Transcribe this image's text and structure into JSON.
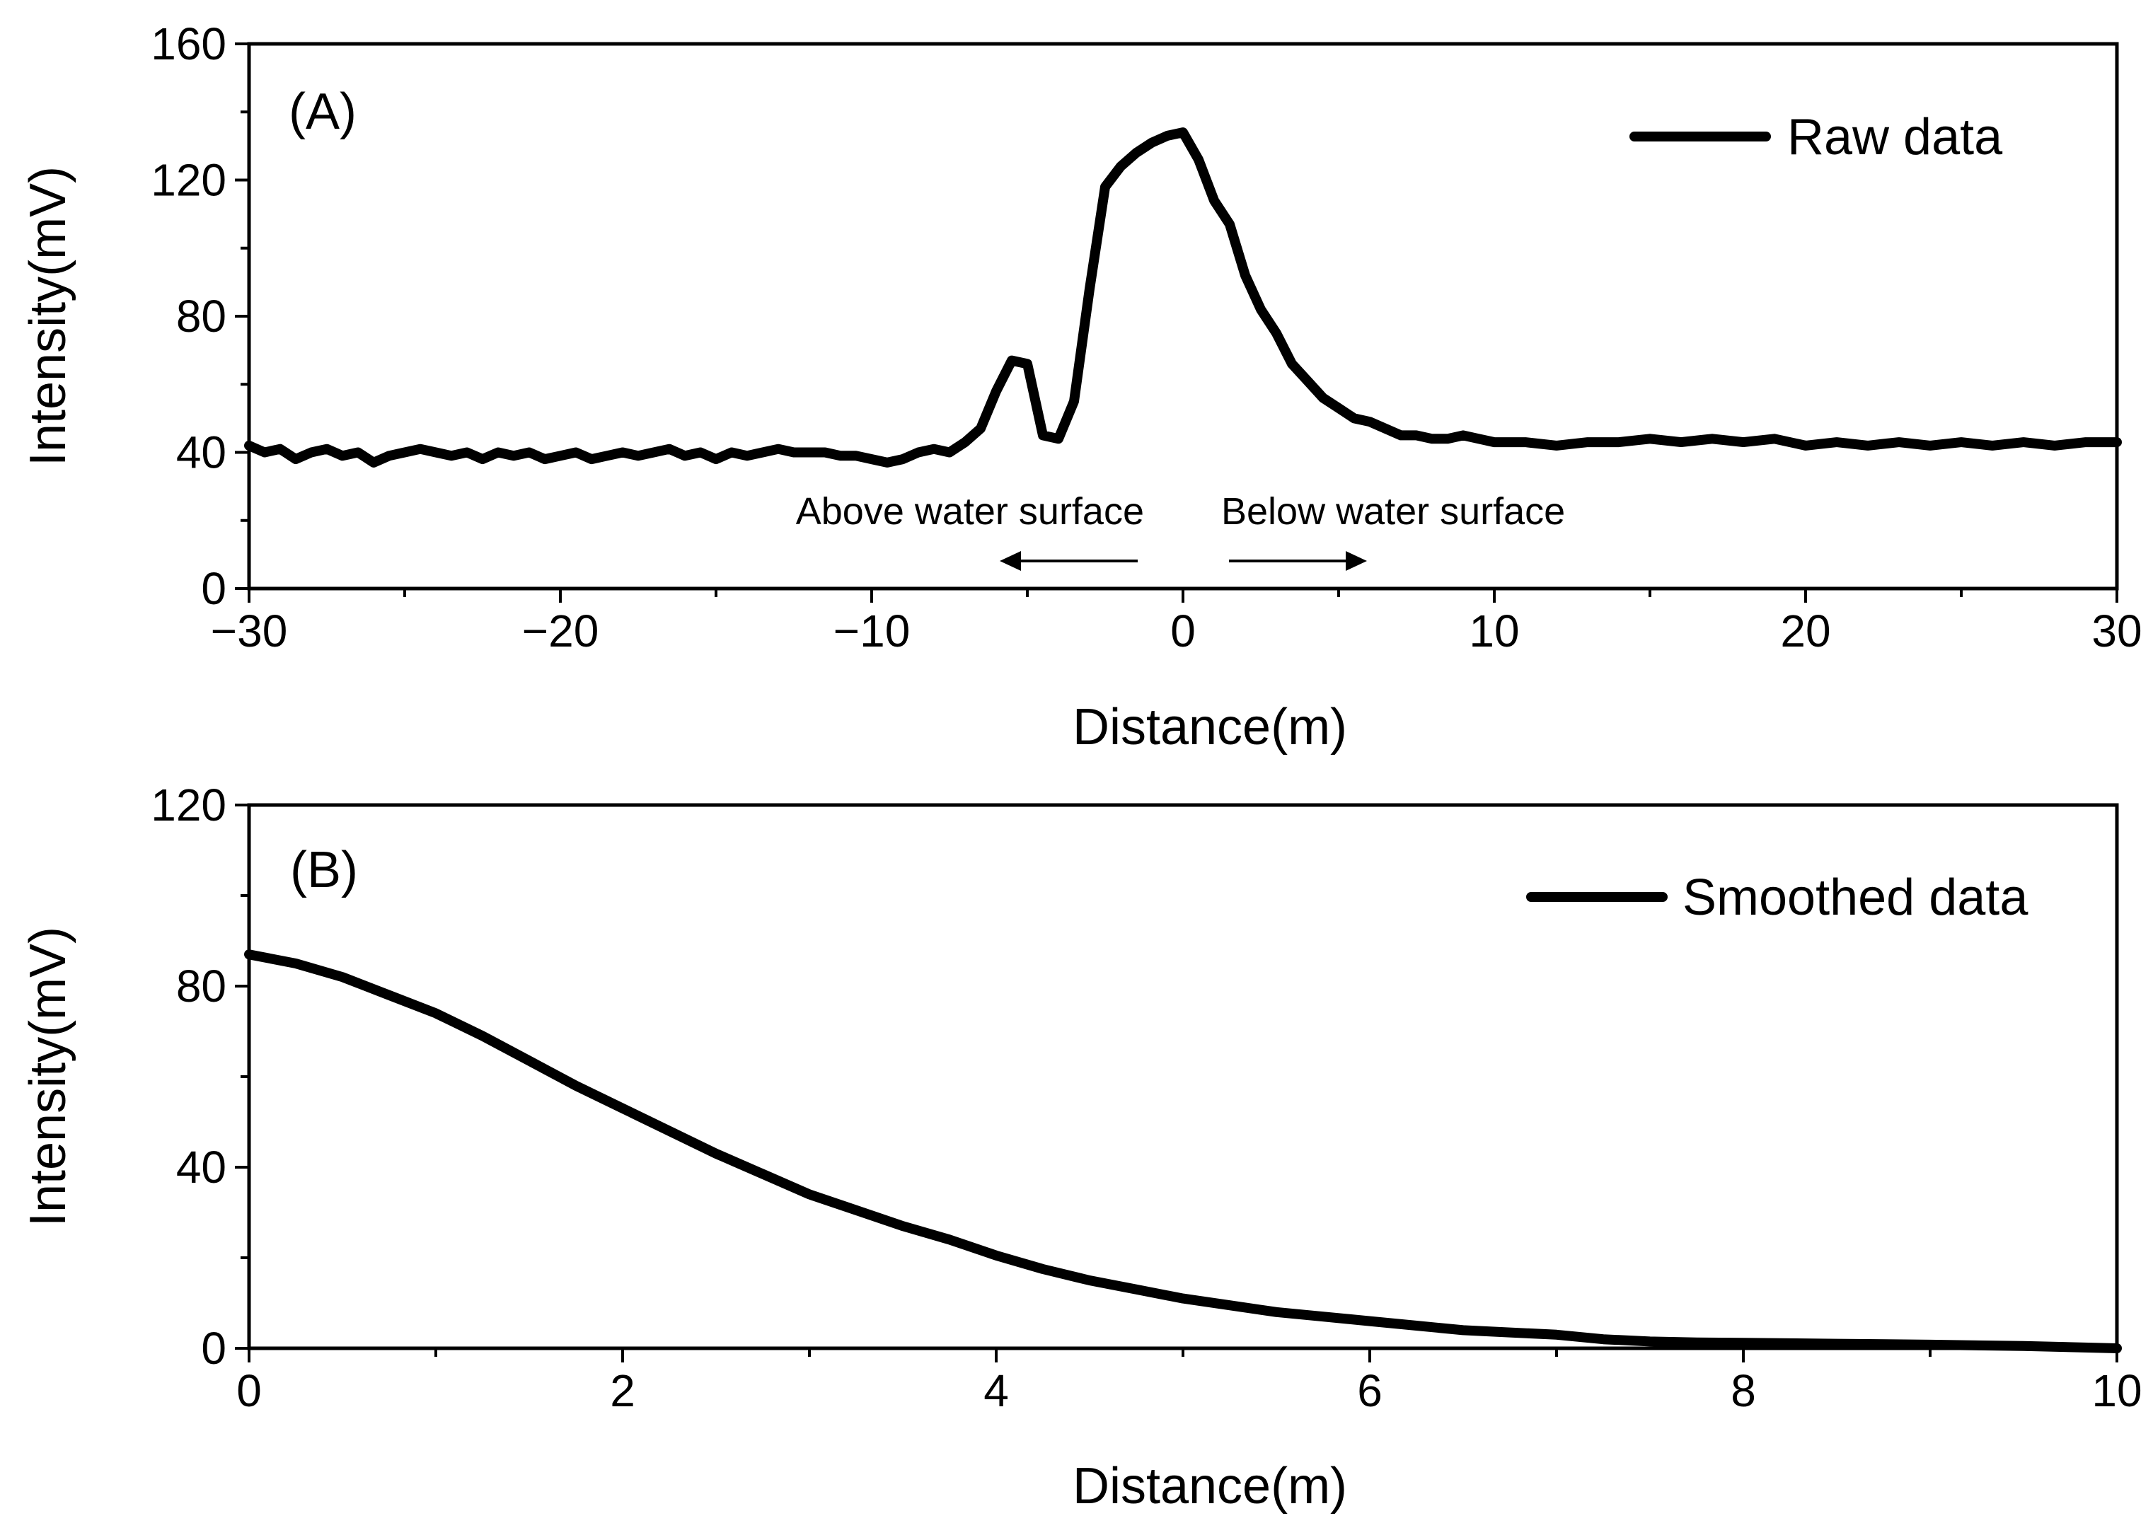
{
  "chart_data": [
    {
      "type": "line",
      "panel_label": "(A)",
      "xlabel": "Distance(m)",
      "ylabel": "Intensity(mV)",
      "xlim": [
        -30,
        30
      ],
      "ylim": [
        0,
        160
      ],
      "xticks": [
        -30,
        -20,
        -10,
        0,
        10,
        20,
        30
      ],
      "xtick_labels": [
        "−30",
        "−20",
        "−10",
        "0",
        "10",
        "20",
        "30"
      ],
      "yticks": [
        0,
        40,
        80,
        120,
        160
      ],
      "ytick_labels": [
        "0",
        "40",
        "80",
        "120",
        "160"
      ],
      "legend_position": "top-right",
      "annotations": [
        {
          "text": "Above water surface",
          "direction": "left"
        },
        {
          "text": "Below water surface",
          "direction": "right"
        }
      ],
      "series": [
        {
          "name": "Raw data",
          "x": [
            -30,
            -29.5,
            -29,
            -28.5,
            -28,
            -27.5,
            -27,
            -26.5,
            -26,
            -25.5,
            -25,
            -24.5,
            -24,
            -23.5,
            -23,
            -22.5,
            -22,
            -21.5,
            -21,
            -20.5,
            -20,
            -19.5,
            -19,
            -18.5,
            -18,
            -17.5,
            -17,
            -16.5,
            -16,
            -15.5,
            -15,
            -14.5,
            -14,
            -13.5,
            -13,
            -12.5,
            -12,
            -11.5,
            -11,
            -10.5,
            -10,
            -9.5,
            -9,
            -8.5,
            -8,
            -7.5,
            -7,
            -6.5,
            -6,
            -5.5,
            -5,
            -4.5,
            -4,
            -3.5,
            -3,
            -2.5,
            -2,
            -1.5,
            -1,
            -0.5,
            0,
            0.5,
            1,
            1.5,
            2,
            2.5,
            3,
            3.5,
            4,
            4.5,
            5,
            5.5,
            6,
            6.5,
            7,
            7.5,
            8,
            8.5,
            9,
            9.5,
            10,
            11,
            12,
            13,
            14,
            15,
            16,
            17,
            18,
            19,
            20,
            21,
            22,
            23,
            24,
            25,
            26,
            27,
            28,
            29,
            30
          ],
          "values": [
            42,
            40,
            41,
            38,
            40,
            41,
            39,
            40,
            37,
            39,
            40,
            41,
            40,
            39,
            40,
            38,
            40,
            39,
            40,
            38,
            39,
            40,
            38,
            39,
            40,
            39,
            40,
            41,
            39,
            40,
            38,
            40,
            39,
            40,
            41,
            40,
            40,
            40,
            39,
            39,
            38,
            37,
            38,
            40,
            41,
            40,
            43,
            47,
            58,
            67,
            66,
            45,
            44,
            55,
            88,
            118,
            124,
            128,
            131,
            133,
            134,
            126,
            114,
            107,
            92,
            82,
            75,
            66,
            61,
            56,
            53,
            50,
            49,
            47,
            45,
            45,
            44,
            44,
            45,
            44,
            43,
            43,
            42,
            43,
            43,
            44,
            43,
            44,
            43,
            44,
            42,
            43,
            42,
            43,
            42,
            43,
            42,
            43,
            42,
            43,
            43
          ]
        }
      ]
    },
    {
      "type": "line",
      "panel_label": "(B)",
      "xlabel": "Distance(m)",
      "ylabel": "Intensity(mV)",
      "xlim": [
        0,
        10
      ],
      "ylim": [
        0,
        120
      ],
      "xticks": [
        0,
        2,
        4,
        6,
        8,
        10
      ],
      "xtick_labels": [
        "0",
        "2",
        "4",
        "6",
        "8",
        "10"
      ],
      "yticks": [
        0,
        40,
        80,
        120
      ],
      "ytick_labels": [
        "0",
        "40",
        "80",
        "120"
      ],
      "legend_position": "top-right",
      "series": [
        {
          "name": "Smoothed data",
          "x": [
            0,
            0.25,
            0.5,
            0.75,
            1,
            1.25,
            1.5,
            1.75,
            2,
            2.25,
            2.5,
            2.75,
            3,
            3.25,
            3.5,
            3.75,
            4,
            4.25,
            4.5,
            4.75,
            5,
            5.25,
            5.5,
            5.75,
            6,
            6.25,
            6.5,
            6.75,
            7,
            7.25,
            7.5,
            7.75,
            8,
            8.5,
            9,
            9.5,
            10
          ],
          "values": [
            87,
            85,
            82,
            78,
            74,
            69,
            63.5,
            58,
            53,
            48,
            43,
            38.5,
            34,
            30.5,
            27,
            24,
            20.5,
            17.5,
            15,
            13,
            11,
            9.5,
            8,
            7,
            6,
            5,
            4,
            3.5,
            3,
            2,
            1.5,
            1.3,
            1.2,
            1,
            0.8,
            0.5,
            0
          ]
        }
      ]
    }
  ]
}
